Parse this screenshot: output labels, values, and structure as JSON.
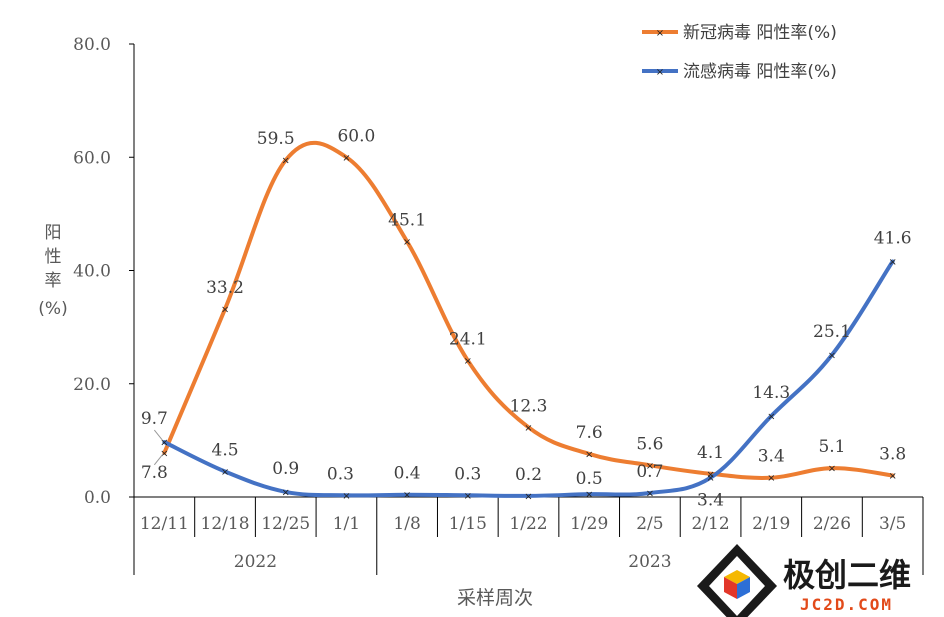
{
  "chart_data": {
    "type": "line",
    "categories": [
      "12/11",
      "12/18",
      "12/25",
      "1/1",
      "1/8",
      "1/15",
      "1/22",
      "1/29",
      "2/5",
      "2/12",
      "2/19",
      "2/26",
      "3/5"
    ],
    "year_groups": [
      {
        "label": "2022",
        "span": [
          0,
          3
        ]
      },
      {
        "label": "2023",
        "span": [
          4,
          12
        ]
      }
    ],
    "series": [
      {
        "name": "新冠病毒 阳性率(%)",
        "color": "#ED7D31",
        "values": [
          7.8,
          33.2,
          59.5,
          60.0,
          45.1,
          24.1,
          12.3,
          7.6,
          5.6,
          4.1,
          3.4,
          5.1,
          3.8
        ],
        "labels": [
          "7.8",
          "33.2",
          "59.5",
          "60.0",
          "45.1",
          "24.1",
          "12.3",
          "7.6",
          "5.6",
          "4.1",
          "3.4",
          "5.1",
          "3.8"
        ]
      },
      {
        "name": "流感病毒 阳性率(%)",
        "color": "#4472C4",
        "values": [
          9.7,
          4.5,
          0.9,
          0.3,
          0.4,
          0.3,
          0.2,
          0.5,
          0.7,
          3.4,
          14.3,
          25.1,
          41.6
        ],
        "labels": [
          "9.7",
          "4.5",
          "0.9",
          "0.3",
          "0.4",
          "0.3",
          "0.2",
          "0.5",
          "0.7",
          "3.4",
          "14.3",
          "25.1",
          "41.6"
        ]
      }
    ],
    "yticks": [
      "0.0",
      "20.0",
      "40.0",
      "60.0",
      "80.0"
    ],
    "ylim": [
      0,
      80
    ],
    "ylabel_chars": [
      "阳",
      "性",
      "率",
      "(%)"
    ],
    "xlabel": "采样周次",
    "legend_position": "top-right",
    "grid": false
  },
  "watermark": {
    "text_cn": "极创二维",
    "text_en": "JC2D.COM"
  }
}
